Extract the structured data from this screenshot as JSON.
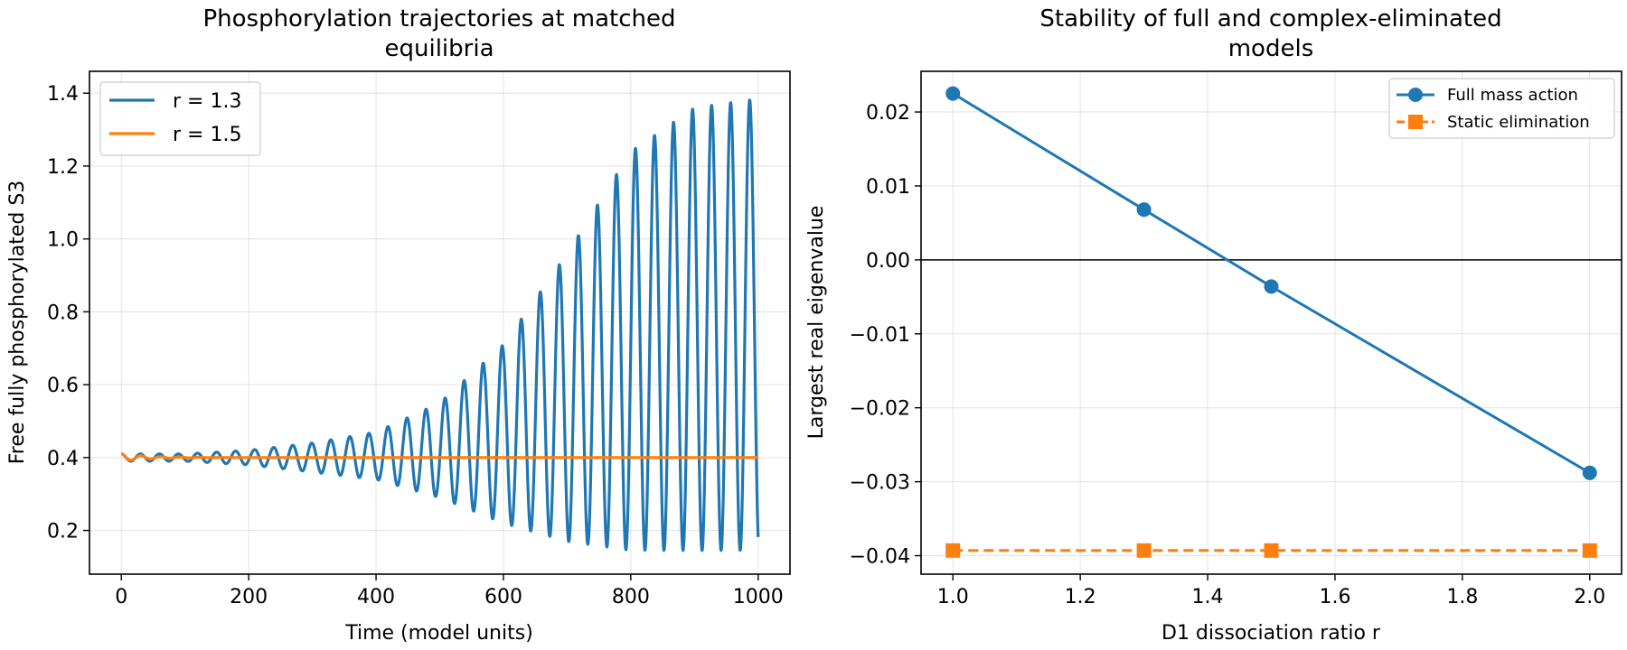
{
  "chart_data": [
    {
      "type": "line",
      "title_lines": [
        "Phosphorylation trajectories at matched",
        "equilibria"
      ],
      "xlabel": "Time (model units)",
      "ylabel": "Free fully phosphorylated S3",
      "xlim": [
        -50,
        1050
      ],
      "ylim": [
        0.08,
        1.46
      ],
      "x_ticks": [
        0,
        200,
        400,
        600,
        800,
        1000
      ],
      "x_tick_labels": [
        "0",
        "200",
        "400",
        "600",
        "800",
        "1000"
      ],
      "y_ticks": [
        0.2,
        0.4,
        0.6,
        0.8,
        1.0,
        1.2,
        1.4
      ],
      "y_tick_labels": [
        "0.2",
        "0.4",
        "0.6",
        "0.8",
        "1.0",
        "1.2",
        "1.4"
      ],
      "grid": true,
      "legend_position": "top-left",
      "series": [
        {
          "name": "r = 1.3",
          "color": "#1f77b4",
          "kind": "damped-growing oscillation",
          "x_range": [
            0,
            1000
          ],
          "center": 0.4,
          "period": 29.9,
          "peak_envelope": {
            "x": [
              0,
              100,
              200,
              300,
              400,
              500,
              600,
              700,
              800,
              900,
              1000
            ],
            "upper": [
              0.41,
              0.41,
              0.42,
              0.44,
              0.47,
              0.55,
              0.71,
              0.96,
              1.24,
              1.36,
              1.385
            ],
            "lower": [
              0.39,
              0.39,
              0.38,
              0.36,
              0.34,
              0.29,
              0.22,
              0.17,
              0.145,
              0.145,
              0.145
            ]
          }
        },
        {
          "name": "r = 1.5",
          "color": "#ff7f0e",
          "kind": "decaying to steady state",
          "x_range": [
            0,
            1000
          ],
          "steady_value": 0.4,
          "initial_value": 0.41
        }
      ]
    },
    {
      "type": "line",
      "title_lines": [
        "Stability of full and complex-eliminated",
        "models"
      ],
      "xlabel": "D1 dissociation ratio r",
      "ylabel": "Largest real eigenvalue",
      "xlim": [
        0.95,
        2.05
      ],
      "ylim": [
        -0.0425,
        0.0255
      ],
      "x_ticks": [
        1.0,
        1.2,
        1.4,
        1.6,
        1.8,
        2.0
      ],
      "x_tick_labels": [
        "1.0",
        "1.2",
        "1.4",
        "1.6",
        "1.8",
        "2.0"
      ],
      "y_ticks": [
        -0.04,
        -0.03,
        -0.02,
        -0.01,
        0.0,
        0.01,
        0.02
      ],
      "y_tick_labels": [
        "−0.04",
        "−0.03",
        "−0.02",
        "−0.01",
        "0.00",
        "0.01",
        "0.02"
      ],
      "grid": true,
      "reference_line_y": 0.0,
      "legend_position": "top-right",
      "x": [
        1.0,
        1.3,
        1.5,
        2.0
      ],
      "series": [
        {
          "name": "Full mass action",
          "color": "#1f77b4",
          "marker": "circle",
          "linestyle": "solid",
          "values": [
            0.0225,
            0.0068,
            -0.0036,
            -0.0288
          ]
        },
        {
          "name": "Static elimination",
          "color": "#ff7f0e",
          "marker": "square",
          "linestyle": "dashed",
          "values": [
            -0.0393,
            -0.0393,
            -0.0393,
            -0.0393
          ]
        }
      ]
    }
  ]
}
